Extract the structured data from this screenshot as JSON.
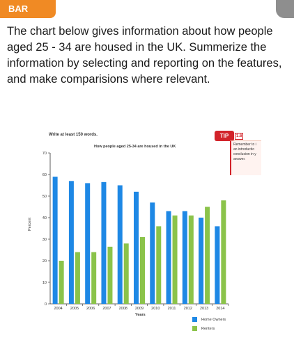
{
  "badge": {
    "label": "BAR"
  },
  "prompt": {
    "text": "The chart below gives information about how people aged 25 - 34 are housed in the UK. Summerize the information by selecting and reporting on the features, and make comparisions where relevant."
  },
  "figure": {
    "instruction": "Write at least 150 words.",
    "tip_label": "TIP",
    "tip_number": "1.6",
    "tip_text": "Remember to i\nan introductio\nconclusion in y\nanswer."
  },
  "chart_data": {
    "type": "bar",
    "title": "How people aged 25-34 are housed in the UK",
    "xlabel": "Years",
    "ylabel": "Percent",
    "ylim": [
      0,
      70
    ],
    "yticks": [
      0,
      10,
      20,
      30,
      40,
      50,
      60,
      70
    ],
    "categories": [
      "2004",
      "2005",
      "2006",
      "2007",
      "2008",
      "2009",
      "2010",
      "2011",
      "2012",
      "2013",
      "2014"
    ],
    "series": [
      {
        "name": "Home Owners",
        "color": "#1e88e5",
        "values": [
          59,
          57,
          56,
          56.5,
          55,
          52,
          47,
          43,
          43,
          40,
          36
        ]
      },
      {
        "name": "Renters",
        "color": "#8bc34a",
        "values": [
          20,
          24,
          24,
          26.5,
          28,
          31,
          36,
          41,
          41,
          45,
          48
        ]
      }
    ],
    "grid": false,
    "legend_position": "bottom-right"
  }
}
